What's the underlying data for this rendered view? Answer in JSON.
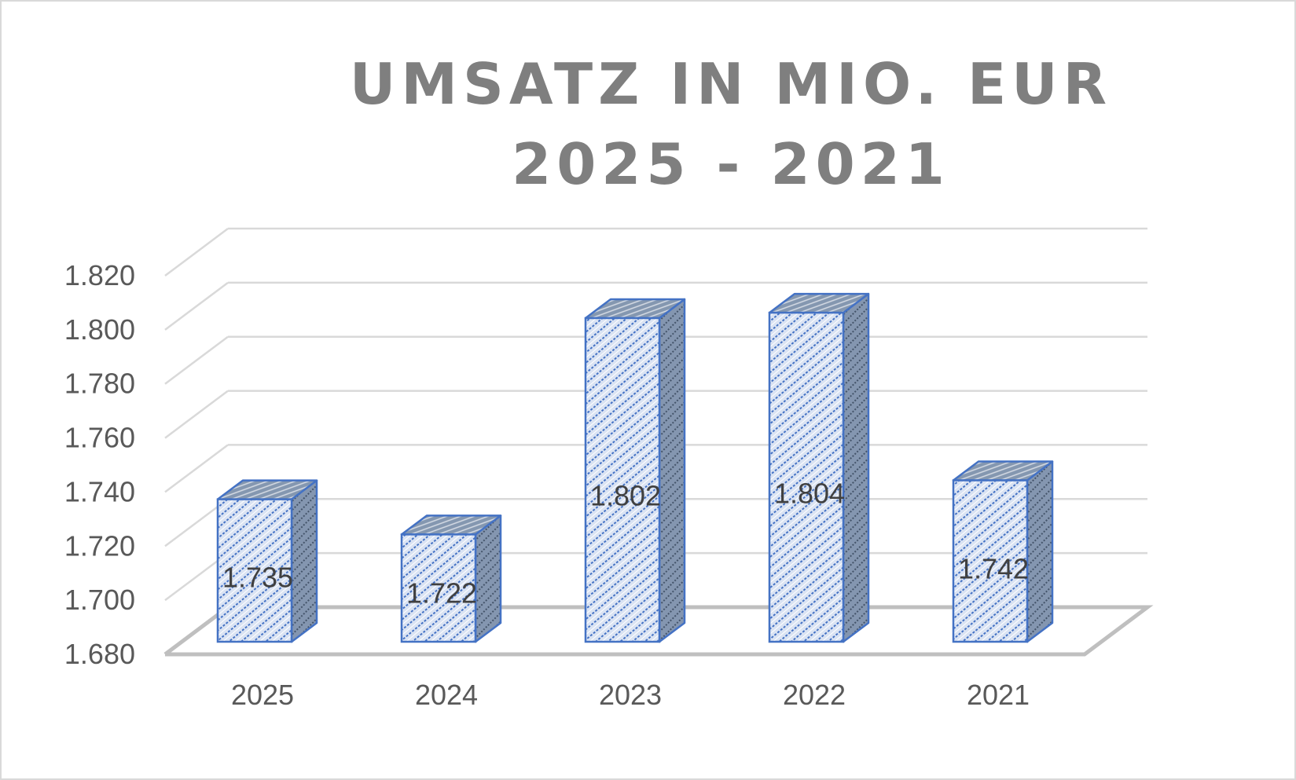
{
  "chart_data": {
    "type": "bar",
    "title": "UMSATZ IN MIO. EUR 2025 - 2021",
    "categories": [
      "2025",
      "2024",
      "2023",
      "2022",
      "2021"
    ],
    "values": [
      1735,
      1722,
      1802,
      1804,
      1742
    ],
    "data_labels": [
      "1.735",
      "1.722",
      "1.802",
      "1.804",
      "1.742"
    ],
    "ylim": [
      1680,
      1820
    ],
    "y_ticks": [
      1680,
      1700,
      1720,
      1740,
      1760,
      1780,
      1800,
      1820
    ],
    "y_tick_labels": [
      "1.680",
      "1.700",
      "1.720",
      "1.740",
      "1.760",
      "1.780",
      "1.800",
      "1.820"
    ],
    "xlabel": "",
    "ylabel": "",
    "grid": true,
    "legend": "none",
    "style": "3d-column-hatched",
    "colors": {
      "bar_fill": "#dae3f3",
      "bar_hatch": "#4472c4",
      "bar_edge": "#4472c4",
      "bar_side": "#8496b0",
      "grid": "#d9d9d9",
      "floor": "#bfbfbf",
      "title": "#7f7f7f",
      "text": "#595959"
    }
  }
}
